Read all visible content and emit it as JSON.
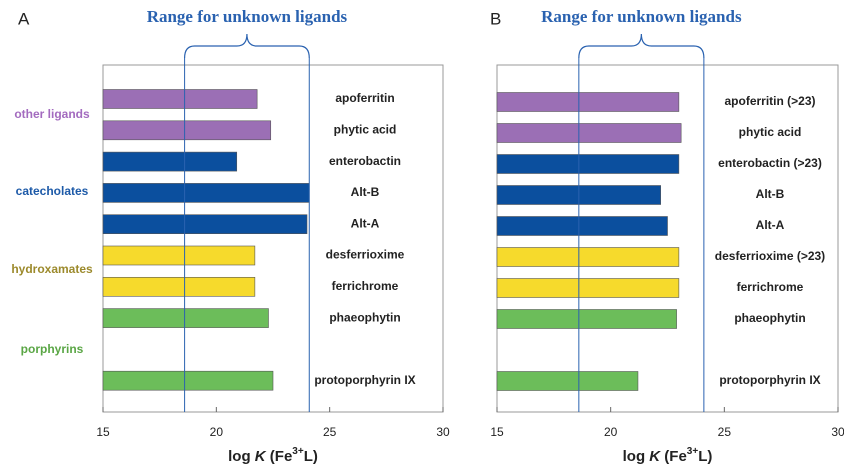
{
  "chart_data": [
    {
      "type": "bar",
      "panel": "A",
      "orientation": "horizontal",
      "annotation": "Range for unknown ligands",
      "range": [
        18.6,
        24.1
      ],
      "categories": [
        "apoferritin",
        "phytic acid",
        "enterobactin",
        "Alt-B",
        "Alt-A",
        "desferrioxime",
        "ferrichrome",
        "phaeophytin",
        null,
        "protoporphyrin IX"
      ],
      "values": [
        21.8,
        22.4,
        20.9,
        24.1,
        24.0,
        21.7,
        21.7,
        22.3,
        null,
        22.5
      ],
      "colors": [
        "#9b6fb5",
        "#9b6fb5",
        "#0b4f9e",
        "#0b4f9e",
        "#0b4f9e",
        "#f6da2c",
        "#f6da2c",
        "#6cbd5a",
        null,
        "#6cbd5a"
      ],
      "groups": [
        {
          "label": "other ligands",
          "color": "#a36bbf"
        },
        {
          "label": "catecholates",
          "color": "#1d5aa8"
        },
        {
          "label": "hydroxamates",
          "color": "#9c8a2c"
        },
        {
          "label": "porphyrins",
          "color": "#5aa645"
        }
      ],
      "xlim": [
        15,
        30
      ],
      "xticks": [
        15,
        20,
        25,
        30
      ],
      "xlabel": [
        "log ",
        "K",
        " (Fe",
        "3+",
        "L)"
      ]
    },
    {
      "type": "bar",
      "panel": "B",
      "orientation": "horizontal",
      "annotation": "Range for unknown ligands",
      "range": [
        18.6,
        24.1
      ],
      "categories": [
        "apoferritin (>23)",
        "phytic acid",
        "enterobactin (>23)",
        "Alt-B",
        "Alt-A",
        "desferrioxime (>23)",
        "ferrichrome",
        "phaeophytin",
        null,
        "protoporphyrin IX"
      ],
      "values": [
        23.0,
        23.1,
        23.0,
        22.2,
        22.5,
        23.0,
        23.0,
        22.9,
        null,
        21.2
      ],
      "colors": [
        "#9b6fb5",
        "#9b6fb5",
        "#0b4f9e",
        "#0b4f9e",
        "#0b4f9e",
        "#f6da2c",
        "#f6da2c",
        "#6cbd5a",
        null,
        "#6cbd5a"
      ],
      "xlim": [
        15,
        30
      ],
      "xticks": [
        15,
        20,
        25,
        30
      ],
      "xlabel": [
        "log ",
        "K",
        " (Fe",
        "3+",
        "L)"
      ]
    }
  ]
}
